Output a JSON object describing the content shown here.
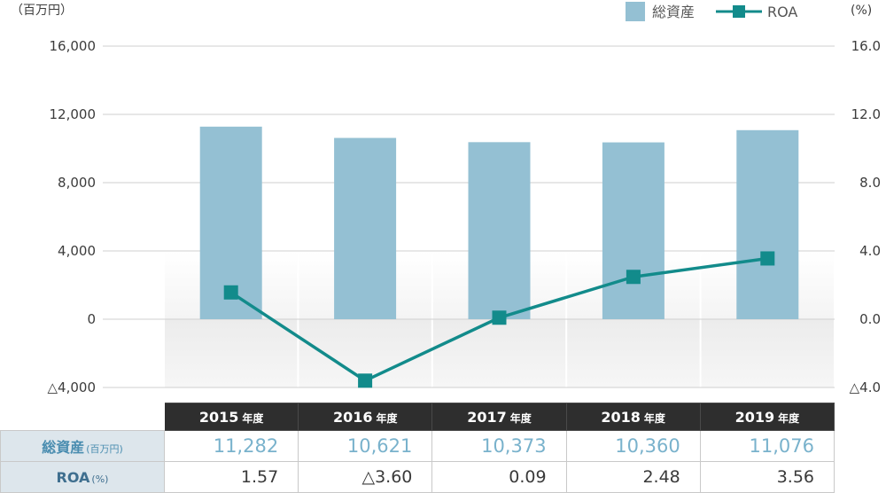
{
  "colors": {
    "bar": "#94c0d3",
    "line": "#128b8b",
    "marker": "#128b8b",
    "grid": "#cfcfcf",
    "header_bg": "#2e2e2e",
    "row_label_bg": "#dde6ec"
  },
  "left_unit": "（百万円）",
  "right_unit": "(%)",
  "legend": {
    "bar_label": "総資産",
    "line_label": "ROA"
  },
  "chart_data": {
    "type": "bar",
    "categories": [
      "2015",
      "2016",
      "2017",
      "2018",
      "2019"
    ],
    "series": [
      {
        "name": "総資産",
        "type": "bar",
        "axis": "left",
        "values": [
          11282,
          10621,
          10373,
          10360,
          11076
        ]
      },
      {
        "name": "ROA",
        "type": "line",
        "axis": "right",
        "values": [
          1.57,
          -3.6,
          0.09,
          2.48,
          3.56
        ]
      }
    ],
    "y_left": {
      "ylim": [
        -4000,
        16000
      ],
      "ticks": [
        16000,
        12000,
        8000,
        4000,
        0,
        -4000
      ],
      "tick_labels": [
        "16,000",
        "12,000",
        "8,000",
        "4,000",
        "0",
        "△4,000"
      ]
    },
    "y_right": {
      "ylim": [
        -4.0,
        16.0
      ],
      "ticks": [
        16,
        12,
        8,
        4,
        0,
        -4
      ],
      "tick_labels": [
        "16.0",
        "12.0",
        "8.0",
        "4.0",
        "0.0",
        "△4.0"
      ]
    },
    "grid": true
  },
  "table": {
    "year_suffix": "年度",
    "years": [
      "2015",
      "2016",
      "2017",
      "2018",
      "2019"
    ],
    "rows": [
      {
        "label": "総資産",
        "unit": "(百万円)",
        "values": [
          "11,282",
          "10,621",
          "10,373",
          "10,360",
          "11,076"
        ]
      },
      {
        "label": "ROA",
        "unit": "(%)",
        "values": [
          "1.57",
          "△3.60",
          "0.09",
          "2.48",
          "3.56"
        ]
      }
    ]
  }
}
